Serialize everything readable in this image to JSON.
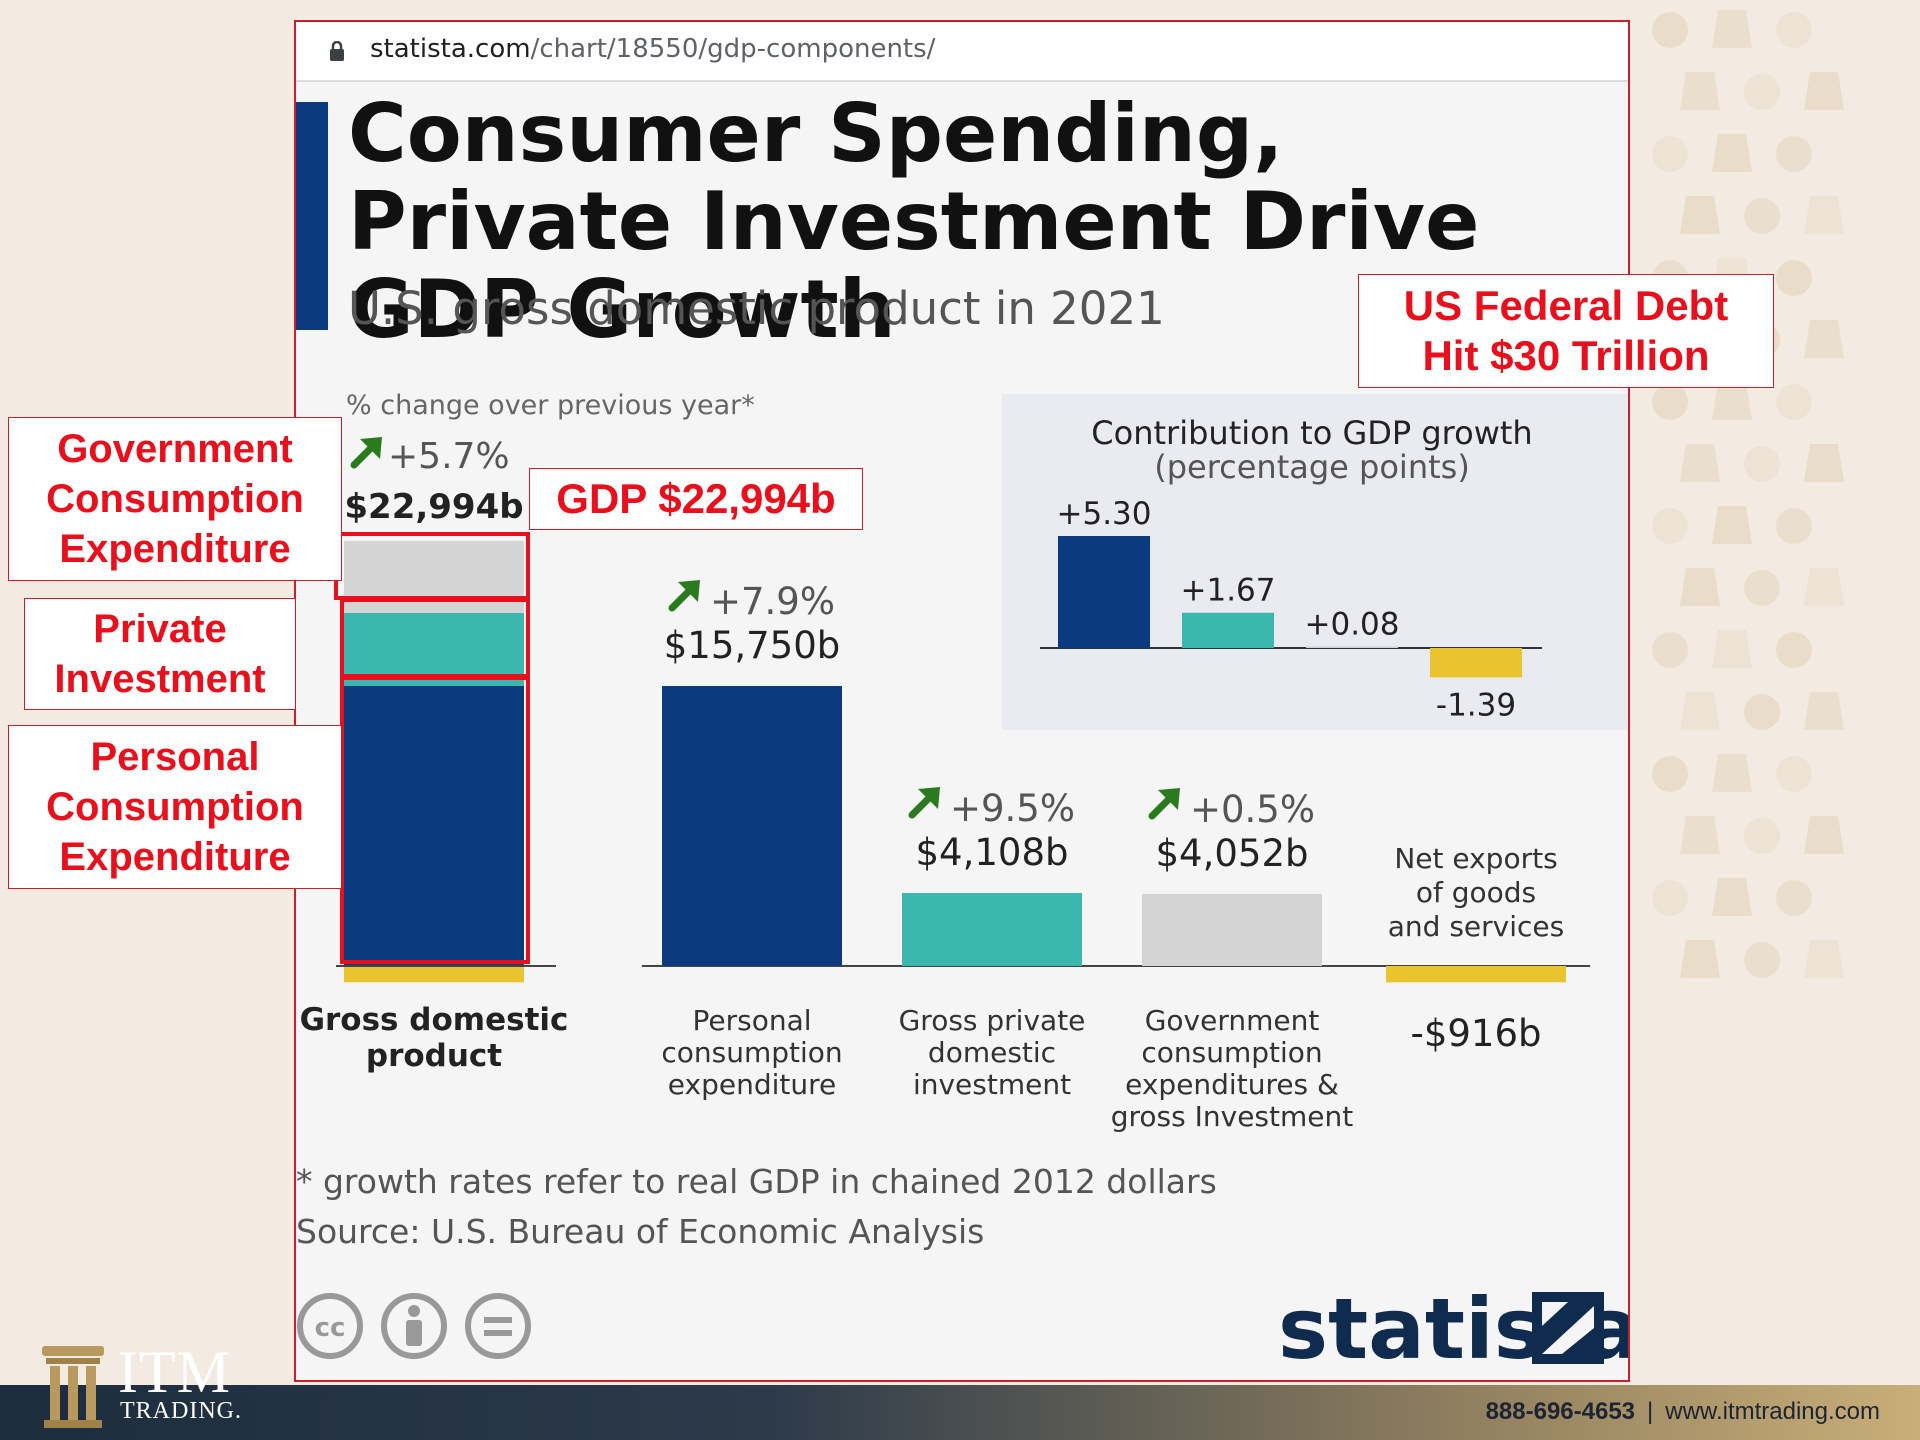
{
  "browser": {
    "url_host": "statista.com",
    "url_path": "/chart/18550/gdp-components/"
  },
  "title": "Consumer Spending, Private Investment Drive GDP Growth",
  "subtitle": "U.S. gross domestic product in 2021",
  "footnote": "* growth rates refer to real GDP in chained 2012 dollars",
  "source": "Source: U.S. Bureau of Economic Analysis",
  "brand": "statista",
  "license_icons": [
    "cc-icon",
    "attribution-icon",
    "no-derivatives-icon"
  ],
  "colors": {
    "navy": "#0b3a7e",
    "teal": "#3bb7b0",
    "gray": "#d4d4d4",
    "yellow": "#e9c42e",
    "arrow": "#2a7a1e",
    "callout": "#e8101c"
  },
  "chart_data": [
    {
      "type": "bar",
      "title": "",
      "ylabel": "% change over previous year*",
      "categories": [
        "Gross domestic product",
        "Personal consumption expenditure",
        "Gross private domestic investment",
        "Government consumption expenditures & gross Investment",
        "Net exports of goods and services"
      ],
      "values": [
        22994,
        15750,
        4108,
        4052,
        -916
      ],
      "value_labels": [
        "$22,994b",
        "$15,750b",
        "$4,108b",
        "$4,052b",
        "-$916b"
      ],
      "growth": [
        "+5.7%",
        "+7.9%",
        "+9.5%",
        "+0.5%",
        ""
      ],
      "stack": {
        "category": "Gross domestic product",
        "components": [
          {
            "name": "Personal consumption expenditure",
            "value": 15750,
            "color": "#0b3a7e"
          },
          {
            "name": "Gross private domestic investment",
            "value": 4108,
            "color": "#3bb7b0"
          },
          {
            "name": "Government consumption expenditures & gross Investment",
            "value": 4052,
            "color": "#d4d4d4"
          },
          {
            "name": "Net exports of goods and services",
            "value": -916,
            "color": "#e9c42e"
          }
        ]
      },
      "colors": [
        "#0b3a7e",
        "#0b3a7e",
        "#3bb7b0",
        "#d4d4d4",
        "#e9c42e"
      ]
    },
    {
      "type": "bar",
      "title": "Contribution to GDP growth",
      "subtitle": "(percentage points)",
      "values": [
        5.3,
        1.67,
        0.08,
        -1.39
      ],
      "value_labels": [
        "+5.30",
        "+1.67",
        "+0.08",
        "-1.39"
      ],
      "colors": [
        "#0b3a7e",
        "#3bb7b0",
        "#d4d4d4",
        "#e9c42e"
      ]
    }
  ],
  "callouts": {
    "government": "Government\nConsumption\nExpenditure",
    "private": "Private\nInvestment",
    "personal": "Personal\nConsumption\nExpenditure",
    "gdp": "GDP $22,994b",
    "debt": "US Federal Debt\nHit $30 Trillion"
  },
  "footer": {
    "itm_name": "ITM",
    "itm_sub": "TRADING.",
    "phone": "888-696-4653",
    "separator": "|",
    "website": "www.itmtrading.com"
  }
}
